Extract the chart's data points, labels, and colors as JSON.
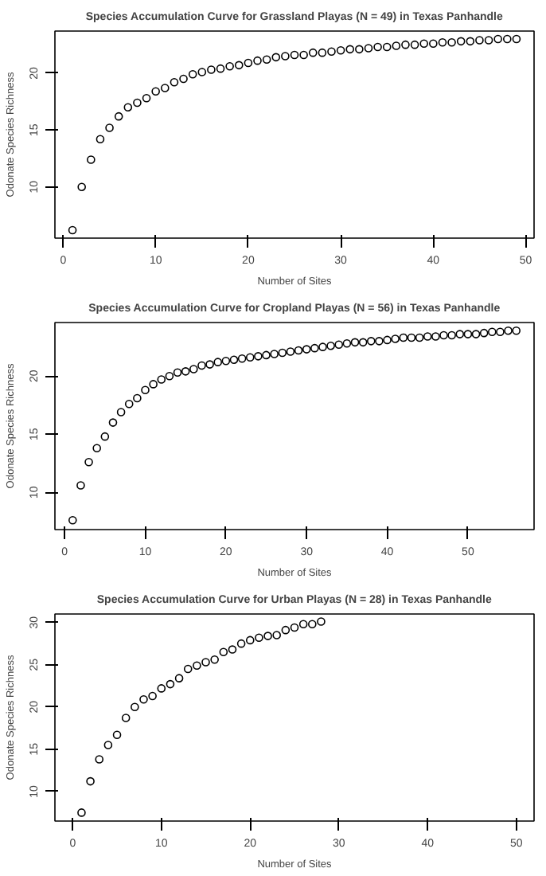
{
  "chart_data": [
    {
      "type": "scatter",
      "title": "Species Accumulation Curve for Grassland Playas (N = 49) in Texas Panhandle",
      "xlabel": "Number of Sites",
      "ylabel": "Odonate Species Richness",
      "marker": "circle",
      "grid": false,
      "x": [
        1,
        2,
        3,
        4,
        5,
        6,
        7,
        8,
        9,
        10,
        11,
        12,
        13,
        14,
        15,
        16,
        17,
        18,
        19,
        20,
        21,
        22,
        23,
        24,
        25,
        26,
        27,
        28,
        29,
        30,
        31,
        32,
        33,
        34,
        35,
        36,
        37,
        38,
        39,
        40,
        41,
        42,
        43,
        44,
        45,
        46,
        47,
        48,
        49
      ],
      "series": [
        {
          "color": "#000000",
          "values": [
            6.2,
            10,
            12.4,
            14.2,
            15.2,
            16.2,
            17.0,
            17.4,
            17.8,
            18.4,
            18.7,
            19.2,
            19.5,
            19.9,
            20.1,
            20.3,
            20.4,
            20.6,
            20.7,
            20.9,
            21.1,
            21.2,
            21.4,
            21.5,
            21.6,
            21.6,
            21.8,
            21.8,
            21.9,
            22.0,
            22.1,
            22.1,
            22.2,
            22.3,
            22.3,
            22.4,
            22.5,
            22.5,
            22.6,
            22.6,
            22.7,
            22.7,
            22.8,
            22.8,
            22.9,
            22.9,
            23.0,
            23.0,
            23.0
          ]
        }
      ],
      "xlim": [
        -0.9,
        50.9
      ],
      "ylim": [
        5.5,
        23.7
      ],
      "xticks": [
        0,
        10,
        20,
        30,
        40,
        50
      ],
      "yticks": [
        10,
        15,
        20
      ]
    },
    {
      "type": "scatter",
      "title": "Species Accumulation Curve for Cropland Playas (N = 56) in Texas Panhandle",
      "xlabel": "Number of Sites",
      "ylabel": "Odonate Species Richness",
      "marker": "circle",
      "grid": false,
      "x": [
        1,
        2,
        3,
        4,
        5,
        6,
        7,
        8,
        9,
        10,
        11,
        12,
        13,
        14,
        15,
        16,
        17,
        18,
        19,
        20,
        21,
        22,
        23,
        24,
        25,
        26,
        27,
        28,
        29,
        30,
        31,
        32,
        33,
        34,
        35,
        36,
        37,
        38,
        39,
        40,
        41,
        42,
        43,
        44,
        45,
        46,
        47,
        48,
        49,
        50,
        51,
        52,
        53,
        54,
        55,
        56
      ],
      "series": [
        {
          "color": "#000000",
          "values": [
            7.6,
            10.6,
            12.6,
            13.8,
            14.8,
            16.0,
            16.9,
            17.6,
            18.1,
            18.8,
            19.3,
            19.7,
            20.0,
            20.3,
            20.4,
            20.6,
            20.9,
            21.0,
            21.2,
            21.3,
            21.4,
            21.5,
            21.6,
            21.7,
            21.8,
            21.9,
            22.0,
            22.1,
            22.2,
            22.3,
            22.4,
            22.5,
            22.6,
            22.7,
            22.8,
            22.9,
            22.9,
            23.0,
            23.0,
            23.1,
            23.2,
            23.3,
            23.3,
            23.3,
            23.4,
            23.4,
            23.5,
            23.5,
            23.6,
            23.6,
            23.6,
            23.7,
            23.8,
            23.8,
            23.9,
            23.9
          ]
        }
      ],
      "xlim": [
        -1.2,
        58.2
      ],
      "ylim": [
        6.8,
        24.6
      ],
      "xticks": [
        0,
        10,
        20,
        30,
        40,
        50
      ],
      "yticks": [
        10,
        15,
        20
      ]
    },
    {
      "type": "scatter",
      "title": "Species Accumulation Curve for Urban Playas (N = 28) in Texas Panhandle",
      "xlabel": "Number of Sites",
      "ylabel": "Odonate Species Richness",
      "marker": "circle",
      "grid": false,
      "x": [
        1,
        2,
        3,
        4,
        5,
        6,
        7,
        8,
        9,
        10,
        11,
        12,
        13,
        14,
        15,
        16,
        17,
        18,
        19,
        20,
        21,
        22,
        23,
        24,
        25,
        26,
        27,
        28
      ],
      "series": [
        {
          "color": "#000000",
          "values": [
            7.5,
            11.2,
            13.8,
            15.5,
            16.7,
            18.7,
            20.0,
            20.9,
            21.3,
            22.2,
            22.7,
            23.4,
            24.5,
            24.9,
            25.3,
            25.6,
            26.5,
            26.8,
            27.5,
            27.9,
            28.2,
            28.4,
            28.5,
            29.1,
            29.4,
            29.8,
            29.8,
            30.1
          ]
        }
      ],
      "xlim": [
        -2,
        52
      ],
      "ylim": [
        6.5,
        31
      ],
      "xticks": [
        0,
        10,
        20,
        30,
        40,
        50
      ],
      "yticks": [
        10,
        15,
        20,
        25,
        30
      ]
    }
  ]
}
